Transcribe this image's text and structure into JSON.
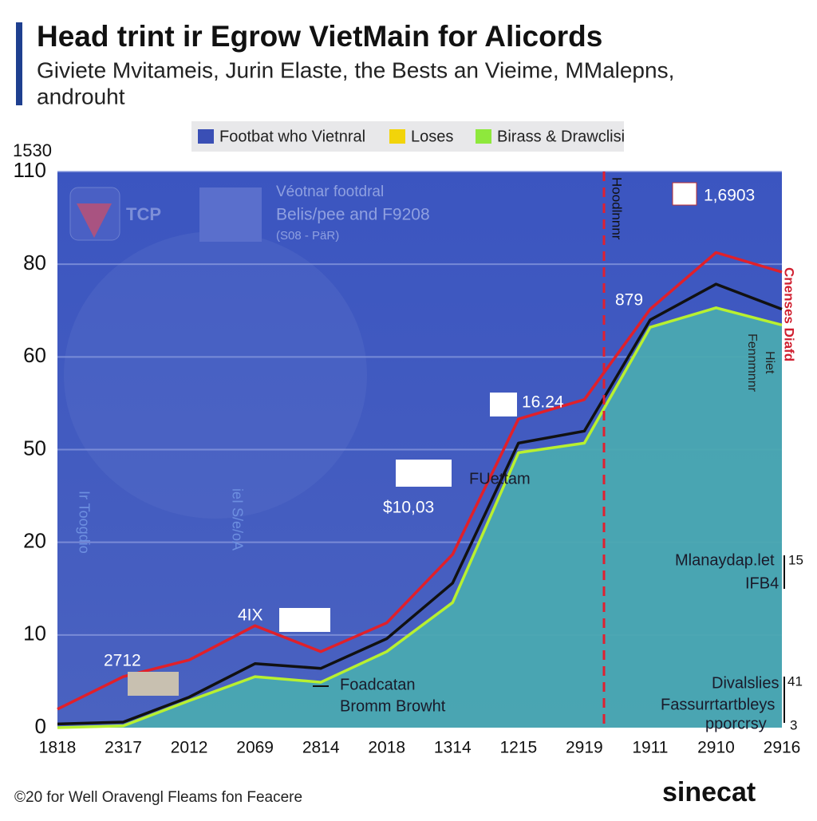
{
  "chart_data": {
    "type": "line",
    "title": "Head trint ir Egrow VietMain for Alicords",
    "subtitle": [
      "Giviete Mvitameis, Jurin Elaste, the Bests an Vieime, MMalepns,",
      "androuht"
    ],
    "legend": [
      {
        "name": "Footbat who Vietnral",
        "color": "#3a4fb5"
      },
      {
        "name": "Loses",
        "color": "#f2d40a"
      },
      {
        "name": "Birass & Drawclisi",
        "color": "#8ee83c"
      }
    ],
    "ylabel": "1530",
    "categories": [
      "1818",
      "2317",
      "2012",
      "2069",
      "2814",
      "2018",
      "1314",
      "1215",
      "2919",
      "1911",
      "2910",
      "2916"
    ],
    "series": [
      {
        "color": "#e0202a",
        "values": [
          2,
          5.5,
          7.3,
          11,
          8.2,
          11.3,
          18.7,
          53.3,
          55.4,
          70.3,
          83.8,
          78.3
        ]
      },
      {
        "color": "#111111",
        "values": [
          0.4,
          0.6,
          3.3,
          6.9,
          6.4,
          9.6,
          15.6,
          50.7,
          52,
          68,
          75.7,
          70.3
        ]
      },
      {
        "color": "#b8f030",
        "fill": "#4aa9b1",
        "values": [
          0,
          0.2,
          2.9,
          5.5,
          4.9,
          8.2,
          13.5,
          49,
          50.7,
          66.4,
          70.6,
          66.9
        ]
      }
    ],
    "yticks": [
      0,
      10,
      20,
      50,
      60,
      80,
      110
    ],
    "ylim": [
      0,
      110
    ],
    "grid": true,
    "annotations": [
      "1,6903",
      "879",
      "16.24",
      "FUettam",
      "$10,03",
      "4IX",
      "2712",
      "Foadcatan",
      "Bromm Browht",
      "Mlanaydap.let",
      "IFB4",
      "15",
      "Divalslies",
      "Fassurrtartbleys",
      "pporcrsy",
      "41",
      "3",
      "Hoodlnnnr",
      "Cnenses Diafd",
      "Fennmnnr",
      "Hiet",
      "Ir Toogdio",
      "ieI S/e/oA"
    ],
    "panel": {
      "logo": "TCP",
      "lines": [
        "Véotnar footdral",
        "Belis/pee and F9208",
        "(S08 - PäR)"
      ]
    }
  },
  "footer": {
    "credit": "©20 for Well Oravengl Fleams fon Feacere",
    "brand": "sinecat"
  }
}
